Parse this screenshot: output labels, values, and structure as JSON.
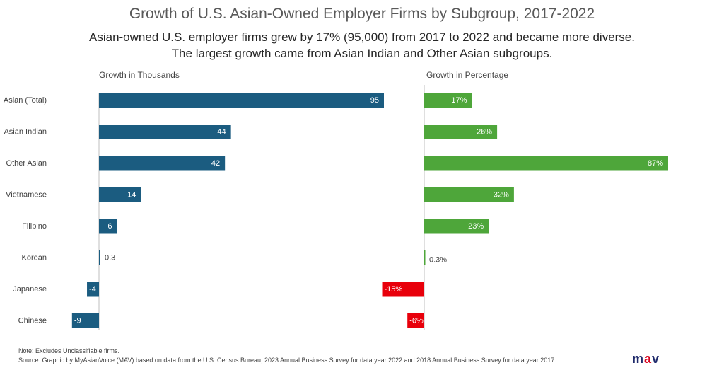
{
  "title": "Growth of U.S. Asian-Owned Employer Firms by Subgroup,  2017-2022",
  "subtitle_line1": "Asian-owned U.S. employer firms grew by 17% (95,000) from 2017 to 2022 and became more diverse.",
  "subtitle_line2": "The largest growth came from Asian Indian and Other Asian subgroups.",
  "notes": {
    "note": "Note:      Excludes Unclassifiable firms.",
    "source": "Source: Graphic by MyAsianVoice (MAV) based on data from the U.S. Census Bureau, 2023 Annual Business Survey for data year 2022 and 2018 Annual Business Survey for data year 2017."
  },
  "logo": {
    "left": "m",
    "mid": "a",
    "right": "v"
  },
  "colors": {
    "thousands_bar": "#1b5c80",
    "pct_positive": "#4ea63a",
    "pct_negative": "#e8000b",
    "axis": "#bfbfbf"
  },
  "chart_data": [
    {
      "type": "bar",
      "orientation": "horizontal",
      "title": "Growth in Thousands",
      "categories": [
        "Asian (Total)",
        "Asian Indian",
        "Other Asian",
        "Vietnamese",
        "Filipino",
        "Korean",
        "Japanese",
        "Chinese"
      ],
      "values": [
        95,
        44,
        42,
        14,
        6,
        0.3,
        -4,
        -9
      ],
      "labels": [
        "95",
        "44",
        "42",
        "14",
        "6",
        "0.3",
        "-4",
        "-9"
      ],
      "xlim": [
        -9,
        95
      ]
    },
    {
      "type": "bar",
      "orientation": "horizontal",
      "title": "Growth in Percentage",
      "categories": [
        "Asian (Total)",
        "Asian Indian",
        "Other Asian",
        "Vietnamese",
        "Filipino",
        "Korean",
        "Japanese",
        "Chinese"
      ],
      "values": [
        17,
        26,
        87,
        32,
        23,
        0.3,
        -15,
        -6
      ],
      "labels": [
        "17%",
        "26%",
        "87%",
        "32%",
        "23%",
        "0.3%",
        "-15%",
        "-6%"
      ],
      "xlim": [
        -15,
        87
      ]
    }
  ]
}
